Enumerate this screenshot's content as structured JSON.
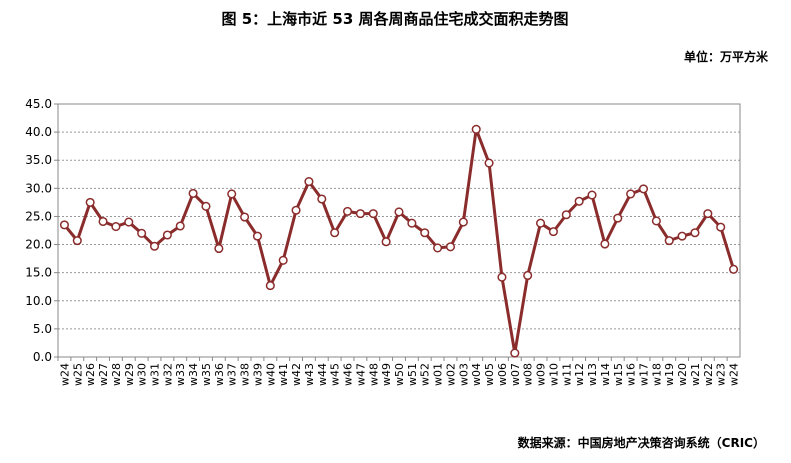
{
  "chart_data": {
    "type": "line",
    "title": "图 5：上海市近 53 周各周商品住宅成交面积走势图",
    "unit_label": "单位：万平方米",
    "source": "数据来源：中国房地产决策咨询系统（CRIC）",
    "categories": [
      "w24",
      "w25",
      "w26",
      "w27",
      "w28",
      "w29",
      "w30",
      "w31",
      "w32",
      "w33",
      "w34",
      "w35",
      "w36",
      "w37",
      "w38",
      "w39",
      "w40",
      "w41",
      "w42",
      "w43",
      "w44",
      "w45",
      "w46",
      "w47",
      "w48",
      "w49",
      "w50",
      "w51",
      "w52",
      "w01",
      "w02",
      "w03",
      "w04",
      "w05",
      "w06",
      "w07",
      "w08",
      "w09",
      "w10",
      "w11",
      "w12",
      "w13",
      "w14",
      "w15",
      "w16",
      "w17",
      "w18",
      "w19",
      "w20",
      "w21",
      "w22",
      "w23",
      "w24"
    ],
    "values": [
      23.5,
      20.7,
      27.5,
      24.1,
      23.2,
      24.0,
      22.0,
      19.7,
      21.7,
      23.3,
      29.1,
      26.8,
      19.3,
      29.0,
      24.9,
      21.5,
      12.7,
      17.2,
      26.1,
      31.2,
      28.1,
      22.1,
      25.9,
      25.5,
      25.5,
      20.5,
      25.8,
      23.8,
      22.1,
      19.4,
      19.6,
      24.0,
      40.5,
      34.5,
      14.2,
      0.7,
      14.5,
      23.8,
      22.3,
      25.3,
      27.7,
      28.8,
      20.1,
      24.7,
      29.0,
      29.9,
      24.2,
      20.7,
      21.5,
      22.1,
      25.5,
      23.1,
      15.6
    ],
    "color": "#8b2c2c",
    "ylim": [
      0,
      45
    ],
    "yticks": [
      {
        "value": 0,
        "label": "0.0"
      },
      {
        "value": 5,
        "label": "5.0"
      },
      {
        "value": 10,
        "label": "10.0"
      },
      {
        "value": 15,
        "label": "15.0"
      },
      {
        "value": 20,
        "label": "20.0"
      },
      {
        "value": 25,
        "label": "25.0"
      },
      {
        "value": 30,
        "label": "30.0"
      },
      {
        "value": 35,
        "label": "35.0"
      },
      {
        "value": 40,
        "label": "40.0"
      },
      {
        "value": 45,
        "label": "45.0"
      }
    ],
    "grid": true
  }
}
